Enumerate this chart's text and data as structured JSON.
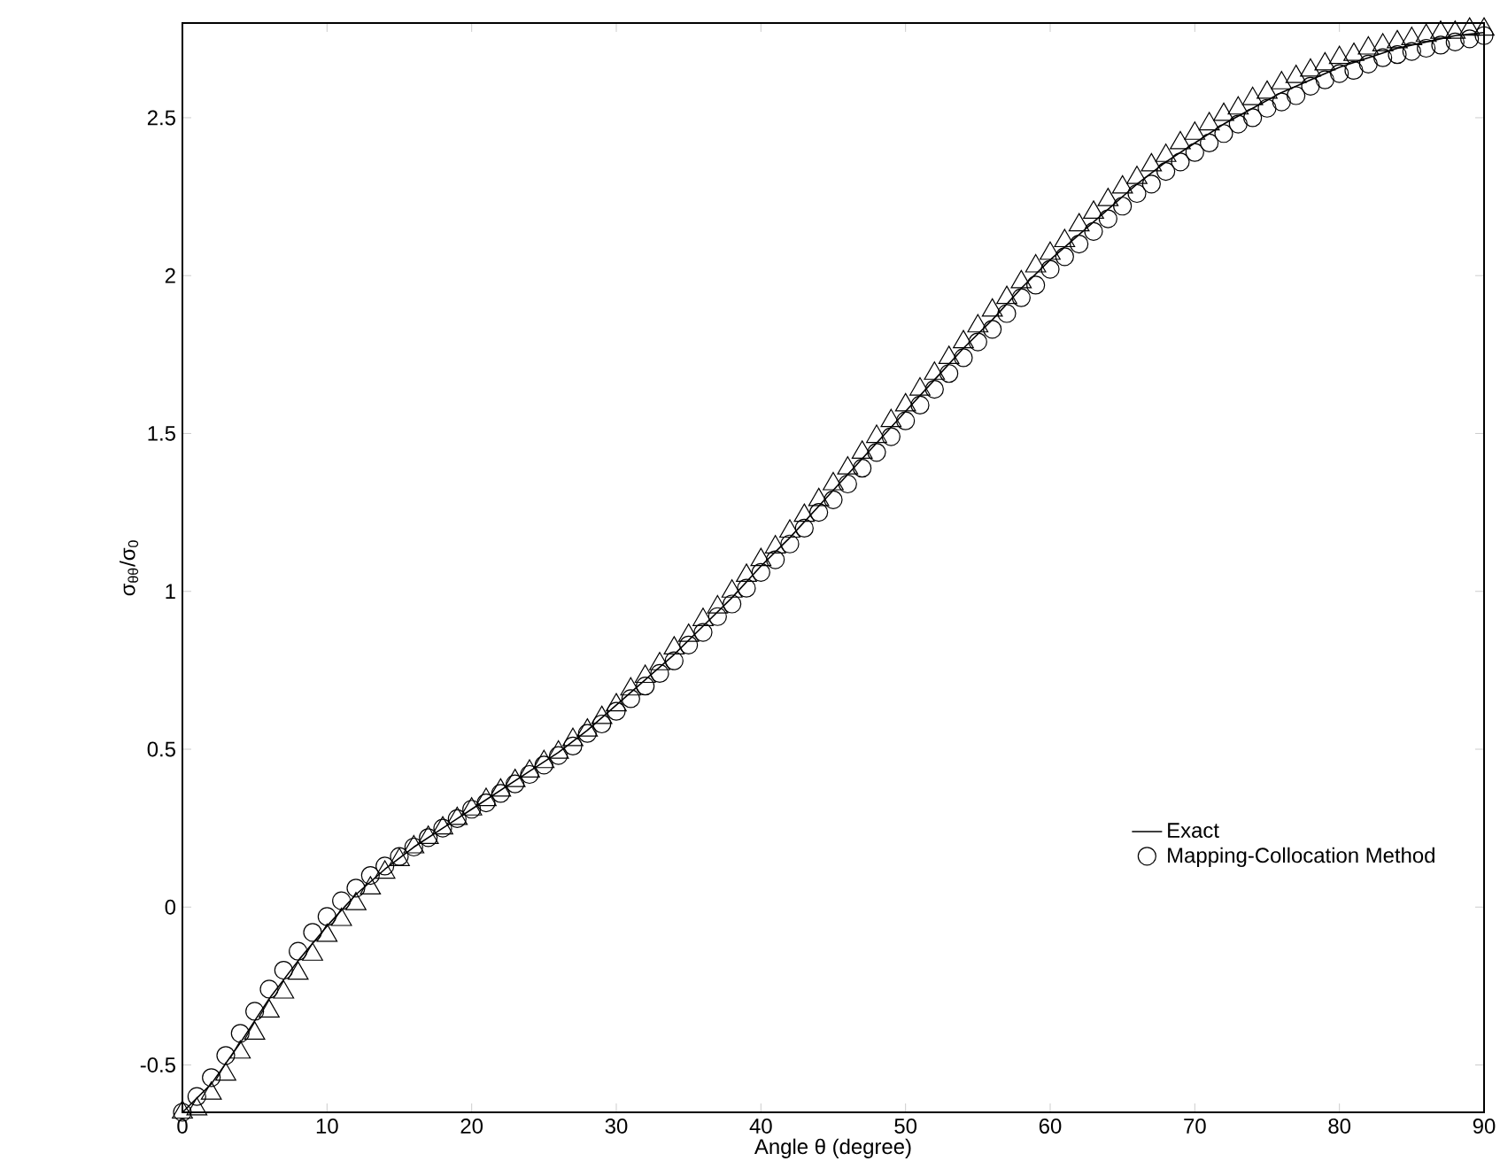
{
  "chart_data": {
    "type": "line",
    "xlabel": "Angle θ (degree)",
    "ylabel": "σ$_{θθ}$/σ$_{0}$",
    "xlim": [
      0,
      90
    ],
    "ylim": [
      -0.65,
      2.8
    ],
    "xticks": [
      0,
      10,
      20,
      30,
      40,
      50,
      60,
      70,
      80,
      90
    ],
    "yticks": [
      -0.5,
      0,
      0.5,
      1,
      1.5,
      2,
      2.5
    ],
    "grid": false,
    "legend": "bottom right",
    "x": [
      0,
      1,
      2,
      3,
      4,
      5,
      6,
      7,
      8,
      9,
      10,
      11,
      12,
      13,
      14,
      15,
      16,
      17,
      18,
      19,
      20,
      21,
      22,
      23,
      24,
      25,
      26,
      27,
      28,
      29,
      30,
      31,
      32,
      33,
      34,
      35,
      36,
      37,
      38,
      39,
      40,
      41,
      42,
      43,
      44,
      45,
      46,
      47,
      48,
      49,
      50,
      51,
      52,
      53,
      54,
      55,
      56,
      57,
      58,
      59,
      60,
      61,
      62,
      63,
      64,
      65,
      66,
      67,
      68,
      69,
      70,
      71,
      72,
      73,
      74,
      75,
      76,
      77,
      78,
      79,
      80,
      81,
      82,
      83,
      84,
      85,
      86,
      87,
      88,
      89,
      90
    ],
    "series": [
      {
        "name": "Exact",
        "color": "#000000",
        "line_style": "solid",
        "x": [
          0,
          2,
          4,
          6,
          8,
          10,
          12,
          14,
          16,
          18,
          20,
          22,
          24,
          26,
          28,
          30,
          32,
          34,
          36,
          38,
          40,
          42,
          44,
          46,
          48,
          50,
          52,
          54,
          56,
          58,
          60,
          62,
          64,
          66,
          68,
          70,
          72,
          74,
          76,
          78,
          80,
          82,
          84,
          86,
          88,
          90
        ],
        "values": [
          -0.65,
          -0.56,
          -0.43,
          -0.29,
          -0.17,
          -0.06,
          0.04,
          0.12,
          0.19,
          0.25,
          0.31,
          0.37,
          0.43,
          0.49,
          0.56,
          0.64,
          0.72,
          0.8,
          0.89,
          0.98,
          1.08,
          1.17,
          1.27,
          1.37,
          1.47,
          1.57,
          1.67,
          1.77,
          1.86,
          1.96,
          2.05,
          2.13,
          2.21,
          2.29,
          2.36,
          2.42,
          2.48,
          2.53,
          2.58,
          2.62,
          2.66,
          2.69,
          2.72,
          2.74,
          2.76,
          2.77
        ]
      },
      {
        "type": "scatter",
        "color": "#000000",
        "marker": "triangle",
        "values": [
          -0.65,
          -0.64,
          -0.59,
          -0.53,
          -0.46,
          -0.4,
          -0.33,
          -0.27,
          -0.21,
          -0.15,
          -0.09,
          -0.04,
          0.01,
          0.06,
          0.11,
          0.15,
          0.19,
          0.22,
          0.25,
          0.28,
          0.31,
          0.34,
          0.37,
          0.4,
          0.43,
          0.46,
          0.49,
          0.53,
          0.56,
          0.6,
          0.64,
          0.69,
          0.73,
          0.77,
          0.82,
          0.86,
          0.91,
          0.95,
          1.0,
          1.05,
          1.1,
          1.14,
          1.19,
          1.24,
          1.29,
          1.34,
          1.39,
          1.44,
          1.49,
          1.54,
          1.59,
          1.64,
          1.69,
          1.74,
          1.79,
          1.84,
          1.89,
          1.93,
          1.98,
          2.03,
          2.07,
          2.11,
          2.16,
          2.2,
          2.24,
          2.28,
          2.31,
          2.35,
          2.38,
          2.42,
          2.45,
          2.48,
          2.51,
          2.53,
          2.56,
          2.58,
          2.61,
          2.63,
          2.65,
          2.67,
          2.69,
          2.7,
          2.72,
          2.73,
          2.74,
          2.75,
          2.76,
          2.77,
          2.77,
          2.78,
          2.78
        ]
      },
      {
        "name": "Mapping-Collocation Method",
        "type": "scatter",
        "color": "#000000",
        "marker": "circle",
        "values": [
          -0.65,
          -0.6,
          -0.54,
          -0.47,
          -0.4,
          -0.33,
          -0.26,
          -0.2,
          -0.14,
          -0.08,
          -0.03,
          0.02,
          0.06,
          0.1,
          0.13,
          0.16,
          0.19,
          0.22,
          0.25,
          0.28,
          0.31,
          0.33,
          0.36,
          0.39,
          0.42,
          0.45,
          0.48,
          0.51,
          0.55,
          0.58,
          0.62,
          0.66,
          0.7,
          0.74,
          0.78,
          0.83,
          0.87,
          0.92,
          0.96,
          1.01,
          1.06,
          1.1,
          1.15,
          1.2,
          1.25,
          1.29,
          1.34,
          1.39,
          1.44,
          1.49,
          1.54,
          1.59,
          1.64,
          1.69,
          1.74,
          1.79,
          1.83,
          1.88,
          1.93,
          1.97,
          2.02,
          2.06,
          2.1,
          2.14,
          2.18,
          2.22,
          2.26,
          2.29,
          2.33,
          2.36,
          2.39,
          2.42,
          2.45,
          2.48,
          2.5,
          2.53,
          2.55,
          2.57,
          2.6,
          2.62,
          2.64,
          2.65,
          2.67,
          2.69,
          2.7,
          2.71,
          2.72,
          2.73,
          2.74,
          2.75,
          2.76
        ]
      }
    ]
  }
}
